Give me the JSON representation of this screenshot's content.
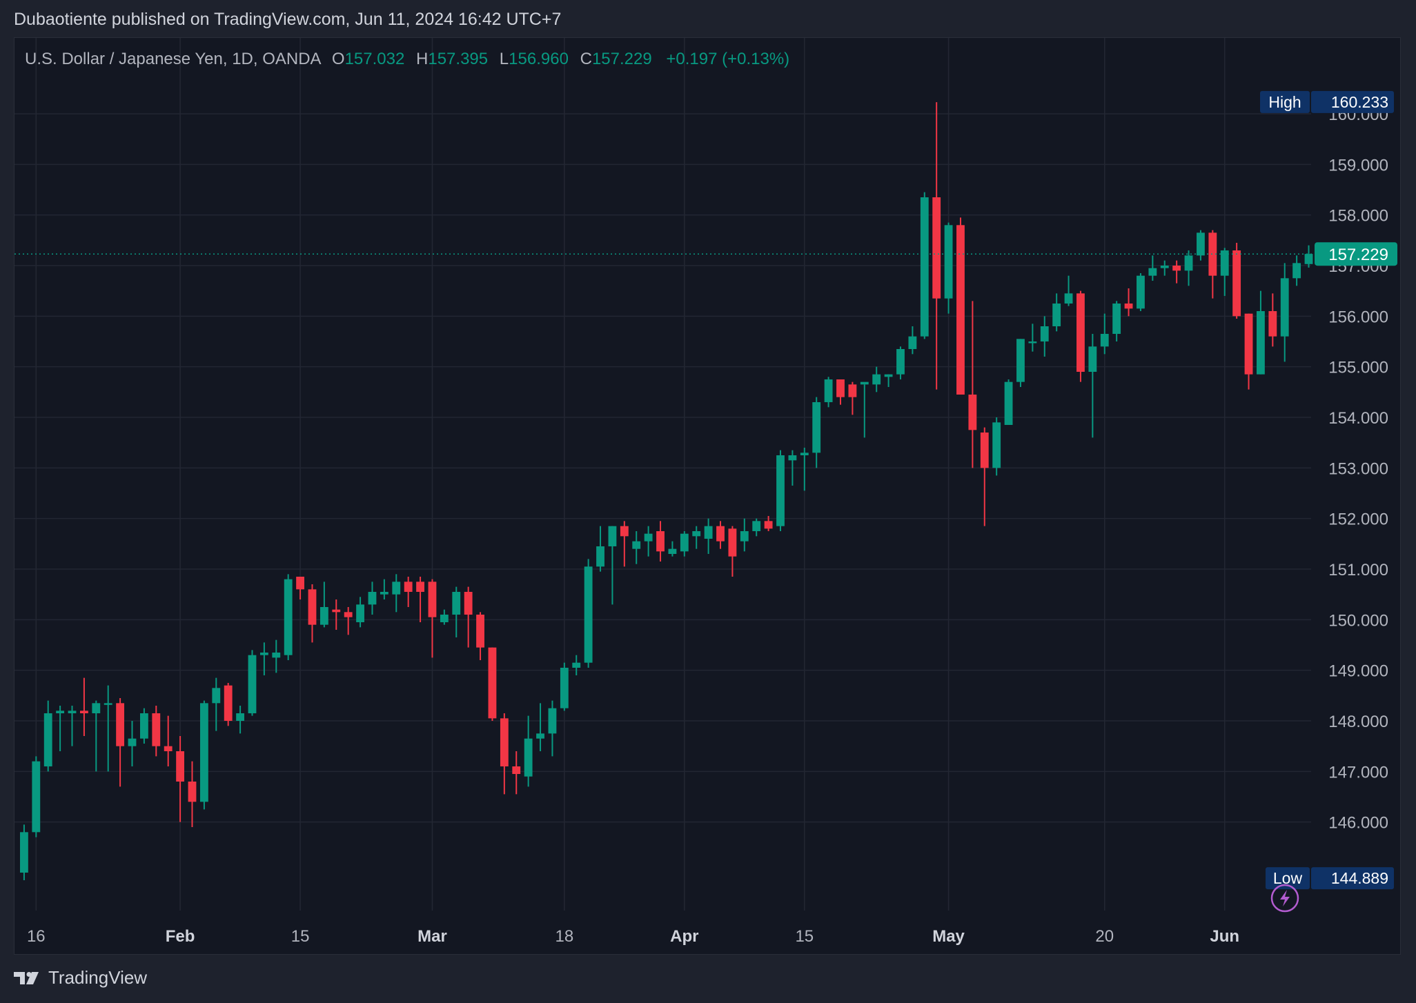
{
  "header": {
    "published": "Dubaotiente published on TradingView.com, Jun 11, 2024 16:42 UTC+7"
  },
  "legend": {
    "symbol": "U.S. Dollar / Japanese Yen, 1D, OANDA",
    "o_label": "O",
    "o_value": "157.032",
    "h_label": "H",
    "h_value": "157.395",
    "l_label": "L",
    "l_value": "156.960",
    "c_label": "C",
    "c_value": "157.229",
    "change": "+0.197 (+0.13%)"
  },
  "footer": {
    "brand": "TradingView",
    "logo_icon": "tradingview-logo-icon"
  },
  "colors": {
    "up": "#089981",
    "down": "#f23645",
    "background": "#131722",
    "grid": "#232733",
    "axis_text": "#b2b5be",
    "badge": "#0f3266"
  },
  "chart_data": {
    "type": "candlestick",
    "symbol": "USDJPY",
    "timeframe": "1D",
    "y_ticks": [
      "146.000",
      "147.000",
      "148.000",
      "149.000",
      "150.000",
      "151.000",
      "152.000",
      "153.000",
      "154.000",
      "155.000",
      "156.000",
      "157.000",
      "158.000",
      "159.000",
      "160.000"
    ],
    "ylim": [
      144.25,
      161.5
    ],
    "x_ticks": [
      {
        "label": "16",
        "index": 1,
        "bold": false
      },
      {
        "label": "Feb",
        "index": 13,
        "bold": true
      },
      {
        "label": "15",
        "index": 23,
        "bold": false
      },
      {
        "label": "Mar",
        "index": 34,
        "bold": true
      },
      {
        "label": "18",
        "index": 45,
        "bold": false
      },
      {
        "label": "Apr",
        "index": 55,
        "bold": true
      },
      {
        "label": "15",
        "index": 65,
        "bold": false
      },
      {
        "label": "May",
        "index": 77,
        "bold": true
      },
      {
        "label": "20",
        "index": 90,
        "bold": false
      },
      {
        "label": "Jun",
        "index": 100,
        "bold": true
      }
    ],
    "x_index_range": [
      -0.8,
      107.2
    ],
    "candles": [
      [
        145.0,
        145.95,
        144.85,
        145.8
      ],
      [
        145.8,
        147.3,
        145.7,
        147.2
      ],
      [
        147.1,
        148.4,
        147.0,
        148.15
      ],
      [
        148.15,
        148.3,
        147.4,
        148.2
      ],
      [
        148.15,
        148.3,
        147.5,
        148.2
      ],
      [
        148.2,
        148.85,
        147.7,
        148.15
      ],
      [
        148.15,
        148.4,
        147.0,
        148.35
      ],
      [
        148.35,
        148.7,
        147.0,
        148.35
      ],
      [
        148.35,
        148.45,
        146.7,
        147.5
      ],
      [
        147.5,
        148.0,
        147.1,
        147.65
      ],
      [
        147.65,
        148.25,
        147.55,
        148.15
      ],
      [
        148.15,
        148.3,
        147.3,
        147.5
      ],
      [
        147.5,
        148.1,
        147.1,
        147.4
      ],
      [
        147.4,
        147.7,
        146.0,
        146.8
      ],
      [
        146.8,
        147.2,
        145.9,
        146.4
      ],
      [
        146.4,
        148.4,
        146.25,
        148.35
      ],
      [
        148.35,
        148.85,
        147.8,
        148.65
      ],
      [
        148.7,
        148.75,
        147.9,
        148.0
      ],
      [
        148.0,
        148.3,
        147.75,
        148.15
      ],
      [
        148.15,
        149.4,
        148.1,
        149.3
      ],
      [
        149.3,
        149.55,
        148.9,
        149.35
      ],
      [
        149.25,
        149.6,
        148.95,
        149.35
      ],
      [
        149.3,
        150.9,
        149.2,
        150.8
      ],
      [
        150.85,
        150.85,
        150.4,
        150.6
      ],
      [
        150.6,
        150.7,
        149.55,
        149.9
      ],
      [
        149.9,
        150.75,
        149.85,
        150.25
      ],
      [
        150.2,
        150.4,
        149.8,
        150.15
      ],
      [
        150.15,
        150.25,
        149.7,
        150.05
      ],
      [
        149.95,
        150.45,
        149.85,
        150.3
      ],
      [
        150.3,
        150.75,
        150.1,
        150.55
      ],
      [
        150.5,
        150.8,
        150.4,
        150.55
      ],
      [
        150.5,
        150.9,
        150.15,
        150.75
      ],
      [
        150.75,
        150.85,
        150.25,
        150.55
      ],
      [
        150.75,
        150.85,
        149.95,
        150.55
      ],
      [
        150.75,
        150.8,
        149.25,
        150.05
      ],
      [
        149.95,
        150.2,
        149.9,
        150.1
      ],
      [
        150.1,
        150.65,
        149.65,
        150.55
      ],
      [
        150.55,
        150.65,
        149.45,
        150.1
      ],
      [
        150.1,
        150.15,
        149.2,
        149.45
      ],
      [
        149.45,
        149.45,
        148.0,
        148.05
      ],
      [
        148.05,
        148.15,
        146.55,
        147.1
      ],
      [
        147.1,
        147.4,
        146.55,
        146.95
      ],
      [
        146.9,
        148.1,
        146.7,
        147.65
      ],
      [
        147.65,
        148.35,
        147.4,
        147.75
      ],
      [
        147.75,
        148.4,
        147.3,
        148.25
      ],
      [
        148.25,
        149.15,
        148.2,
        149.05
      ],
      [
        149.05,
        149.3,
        148.9,
        149.15
      ],
      [
        149.15,
        151.2,
        149.05,
        151.05
      ],
      [
        151.05,
        151.85,
        150.95,
        151.45
      ],
      [
        151.45,
        151.85,
        150.3,
        151.85
      ],
      [
        151.85,
        151.95,
        151.05,
        151.65
      ],
      [
        151.4,
        151.75,
        151.1,
        151.55
      ],
      [
        151.55,
        151.85,
        151.25,
        151.7
      ],
      [
        151.75,
        151.95,
        151.15,
        151.35
      ],
      [
        151.3,
        151.55,
        151.25,
        151.4
      ],
      [
        151.35,
        151.75,
        151.25,
        151.7
      ],
      [
        151.65,
        151.85,
        151.4,
        151.75
      ],
      [
        151.6,
        152.0,
        151.3,
        151.85
      ],
      [
        151.85,
        151.95,
        151.4,
        151.55
      ],
      [
        151.8,
        151.85,
        150.85,
        151.25
      ],
      [
        151.55,
        152.0,
        151.35,
        151.75
      ],
      [
        151.75,
        152.0,
        151.65,
        151.95
      ],
      [
        151.95,
        152.05,
        151.75,
        151.8
      ],
      [
        151.85,
        153.35,
        151.75,
        153.25
      ],
      [
        153.15,
        153.35,
        152.65,
        153.25
      ],
      [
        153.25,
        153.4,
        152.55,
        153.3
      ],
      [
        153.3,
        154.4,
        153.0,
        154.3
      ],
      [
        154.3,
        154.8,
        154.2,
        154.75
      ],
      [
        154.75,
        154.75,
        154.25,
        154.4
      ],
      [
        154.65,
        154.7,
        154.05,
        154.4
      ],
      [
        154.65,
        154.65,
        153.6,
        154.7
      ],
      [
        154.65,
        155.0,
        154.5,
        154.85
      ],
      [
        154.8,
        154.85,
        154.6,
        154.85
      ],
      [
        154.85,
        155.4,
        154.75,
        155.35
      ],
      [
        155.35,
        155.8,
        155.25,
        155.6
      ],
      [
        155.6,
        158.45,
        155.55,
        158.35
      ],
      [
        158.35,
        160.23,
        154.55,
        156.35
      ],
      [
        156.35,
        157.85,
        156.05,
        157.8
      ],
      [
        157.8,
        157.95,
        154.5,
        154.45
      ],
      [
        154.45,
        156.3,
        153.0,
        153.75
      ],
      [
        153.7,
        153.8,
        151.85,
        153.0
      ],
      [
        153.0,
        154.0,
        152.85,
        153.9
      ],
      [
        153.85,
        154.75,
        153.85,
        154.7
      ],
      [
        154.7,
        155.55,
        154.6,
        155.55
      ],
      [
        155.5,
        155.85,
        155.3,
        155.5
      ],
      [
        155.5,
        156.0,
        155.2,
        155.8
      ],
      [
        155.8,
        156.45,
        155.7,
        156.25
      ],
      [
        156.25,
        156.8,
        156.2,
        156.45
      ],
      [
        156.45,
        156.5,
        154.7,
        154.9
      ],
      [
        154.9,
        155.65,
        153.6,
        155.4
      ],
      [
        155.4,
        156.05,
        155.25,
        155.65
      ],
      [
        155.65,
        156.3,
        155.5,
        156.25
      ],
      [
        156.25,
        156.55,
        156.0,
        156.15
      ],
      [
        156.15,
        156.85,
        156.1,
        156.8
      ],
      [
        156.8,
        157.2,
        156.7,
        156.95
      ],
      [
        156.95,
        157.1,
        156.8,
        157.0
      ],
      [
        157.0,
        157.1,
        156.65,
        156.9
      ],
      [
        156.9,
        157.3,
        156.6,
        157.2
      ],
      [
        157.2,
        157.7,
        157.1,
        157.65
      ],
      [
        157.65,
        157.7,
        156.35,
        156.8
      ],
      [
        156.8,
        157.35,
        156.4,
        157.3
      ],
      [
        157.3,
        157.45,
        155.95,
        156.0
      ],
      [
        156.05,
        156.05,
        154.55,
        154.85
      ],
      [
        154.85,
        156.5,
        154.85,
        156.1
      ],
      [
        156.1,
        156.45,
        155.4,
        155.6
      ],
      [
        155.6,
        157.05,
        155.1,
        156.75
      ],
      [
        156.75,
        157.2,
        156.6,
        157.05
      ],
      [
        157.03,
        157.4,
        156.96,
        157.23
      ]
    ],
    "current_price": "157.229",
    "high_label": "High",
    "high_value": "160.233",
    "low_label": "Low",
    "low_value": "144.889",
    "alert_icon": "lightning-icon"
  }
}
